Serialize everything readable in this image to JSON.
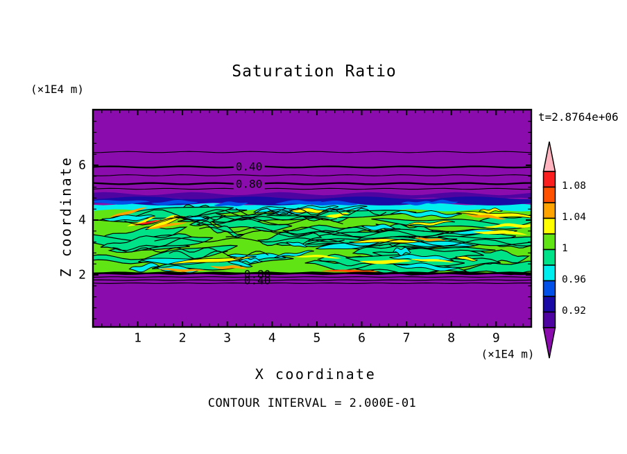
{
  "title": "Saturation Ratio",
  "annotations": {
    "time": "t=2.8764e+06",
    "contour_note": "CONTOUR INTERVAL = 2.000E-01"
  },
  "axes": {
    "x": {
      "label": "X coordinate",
      "unit": "(×1E4 m)",
      "ticks": [
        "1",
        "2",
        "3",
        "4",
        "5",
        "6",
        "7",
        "8",
        "9"
      ]
    },
    "y": {
      "label": "Z coordinate",
      "unit": "(×1E4 m)",
      "ticks": [
        "2",
        "4",
        "6"
      ]
    }
  },
  "contour_labels": {
    "upper": [
      "0.40",
      "0.80"
    ],
    "lower": [
      "0.80",
      "0.40"
    ]
  },
  "colorbar": {
    "tick_labels": [
      "1.08",
      "1.04",
      "1",
      "0.96",
      "0.92"
    ]
  },
  "palette": {
    "purple": "#8B0CAD",
    "dark_violet": "#4E04A0",
    "navy": "#1A0AA5",
    "blue": "#0350E8",
    "cyan": "#00EEEE",
    "green": "#00E287",
    "chartreuse": "#61E414",
    "yellow": "#FFFF00",
    "orange": "#FFA300",
    "orange_red": "#FF5000",
    "red": "#FA1E1E",
    "pink": "#FFB3BE",
    "line": "#000000"
  },
  "chart_data": {
    "type": "heatmap",
    "title": "Saturation Ratio",
    "xlabel": "X coordinate",
    "ylabel": "Z coordinate",
    "x_unit": "(×1E4 m)",
    "y_unit": "(×1E4 m)",
    "xlim": [
      0,
      9.8
    ],
    "ylim": [
      0,
      8.0
    ],
    "time_label": "t=2.8764e+06",
    "contour_interval": 0.2,
    "labeled_line_contours": [
      0.4,
      0.8
    ],
    "colorbar_tick_values": [
      1.08,
      1.04,
      1.0,
      0.96,
      0.92
    ],
    "colorbar_level_step": 0.02,
    "colorbar_levels_low_to_high": [
      0.9,
      0.92,
      0.94,
      0.96,
      0.98,
      1.0,
      1.02,
      1.04,
      1.06,
      1.08,
      1.1
    ],
    "colorbar_colors_low_to_high": [
      "#8B0CAD",
      "#4E04A0",
      "#1A0AA5",
      "#0350E8",
      "#00EEEE",
      "#00E287",
      "#61E414",
      "#FFFF00",
      "#FFA300",
      "#FF5000",
      "#FA1E1E",
      "#FFB3BE"
    ],
    "regions": [
      {
        "z_range": [
          4.9,
          8.0
        ],
        "value_range": [
          0.0,
          0.9
        ],
        "description": "uniform unsaturated purple region; horizontal line contours labeled 0.40 (z≈5.9) and 0.80 (z≈5.3)"
      },
      {
        "z_range": [
          4.6,
          4.9
        ],
        "value_range": [
          0.9,
          0.96
        ],
        "description": "thin dark-violet/navy/blue/cyan transition band at top of saturated layer"
      },
      {
        "z_range": [
          2.0,
          4.6
        ],
        "value_range": [
          0.96,
          1.08
        ],
        "description": "turbulent saturated layer, mostly 1.00-1.02 (green/chartreuse) with cyan 0.96-0.98 patches, yellow 1.02-1.04 streaks and sparse orange/red 1.04-1.08 streaks"
      },
      {
        "z_range": [
          1.6,
          2.0
        ],
        "value_range": [
          0.0,
          0.9
        ],
        "description": "sharp bottom boundary; stacked line contours labeled 0.80 and 0.40 just below z≈2"
      },
      {
        "z_range": [
          0.0,
          1.6
        ],
        "value_range": [
          0.0,
          0.4
        ],
        "description": "uniform purple region"
      }
    ]
  }
}
